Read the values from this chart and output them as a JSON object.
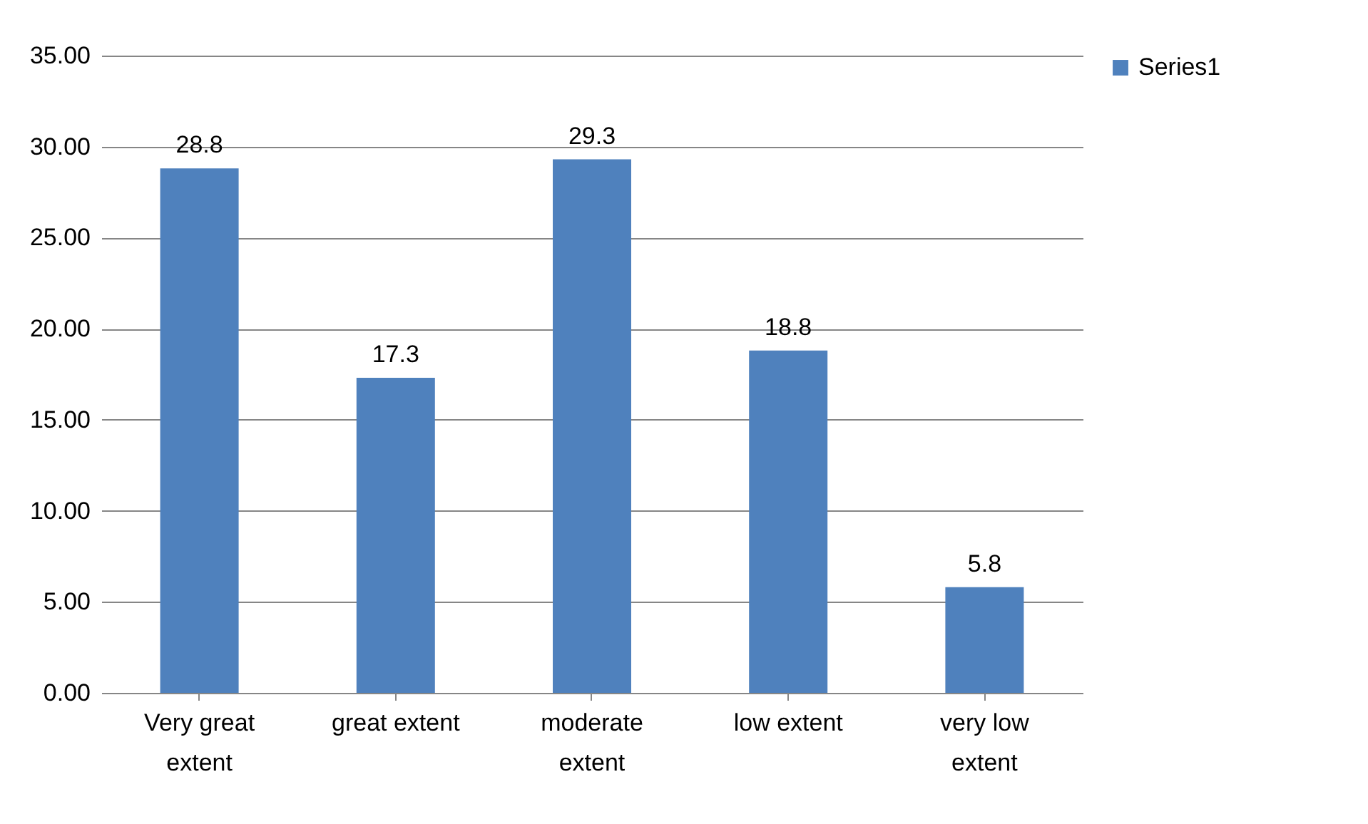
{
  "chart_data": {
    "type": "bar",
    "categories": [
      "Very great extent",
      "great extent",
      "moderate extent",
      "low extent",
      "very low extent"
    ],
    "series": [
      {
        "name": "Series1",
        "color": "#4f81bd",
        "values": [
          28.8,
          17.3,
          29.3,
          18.8,
          5.8
        ]
      }
    ],
    "ylim": [
      0,
      35
    ],
    "yticks": [
      {
        "value": 0,
        "label": "0.00"
      },
      {
        "value": 5,
        "label": "5.00"
      },
      {
        "value": 10,
        "label": "10.00"
      },
      {
        "value": 15,
        "label": "15.00"
      },
      {
        "value": 20,
        "label": "20.00"
      },
      {
        "value": 25,
        "label": "25.00"
      },
      {
        "value": 30,
        "label": "30.00"
      },
      {
        "value": 35,
        "label": "35.00"
      }
    ],
    "grid": "y",
    "legend": "right",
    "data_labels": true
  }
}
